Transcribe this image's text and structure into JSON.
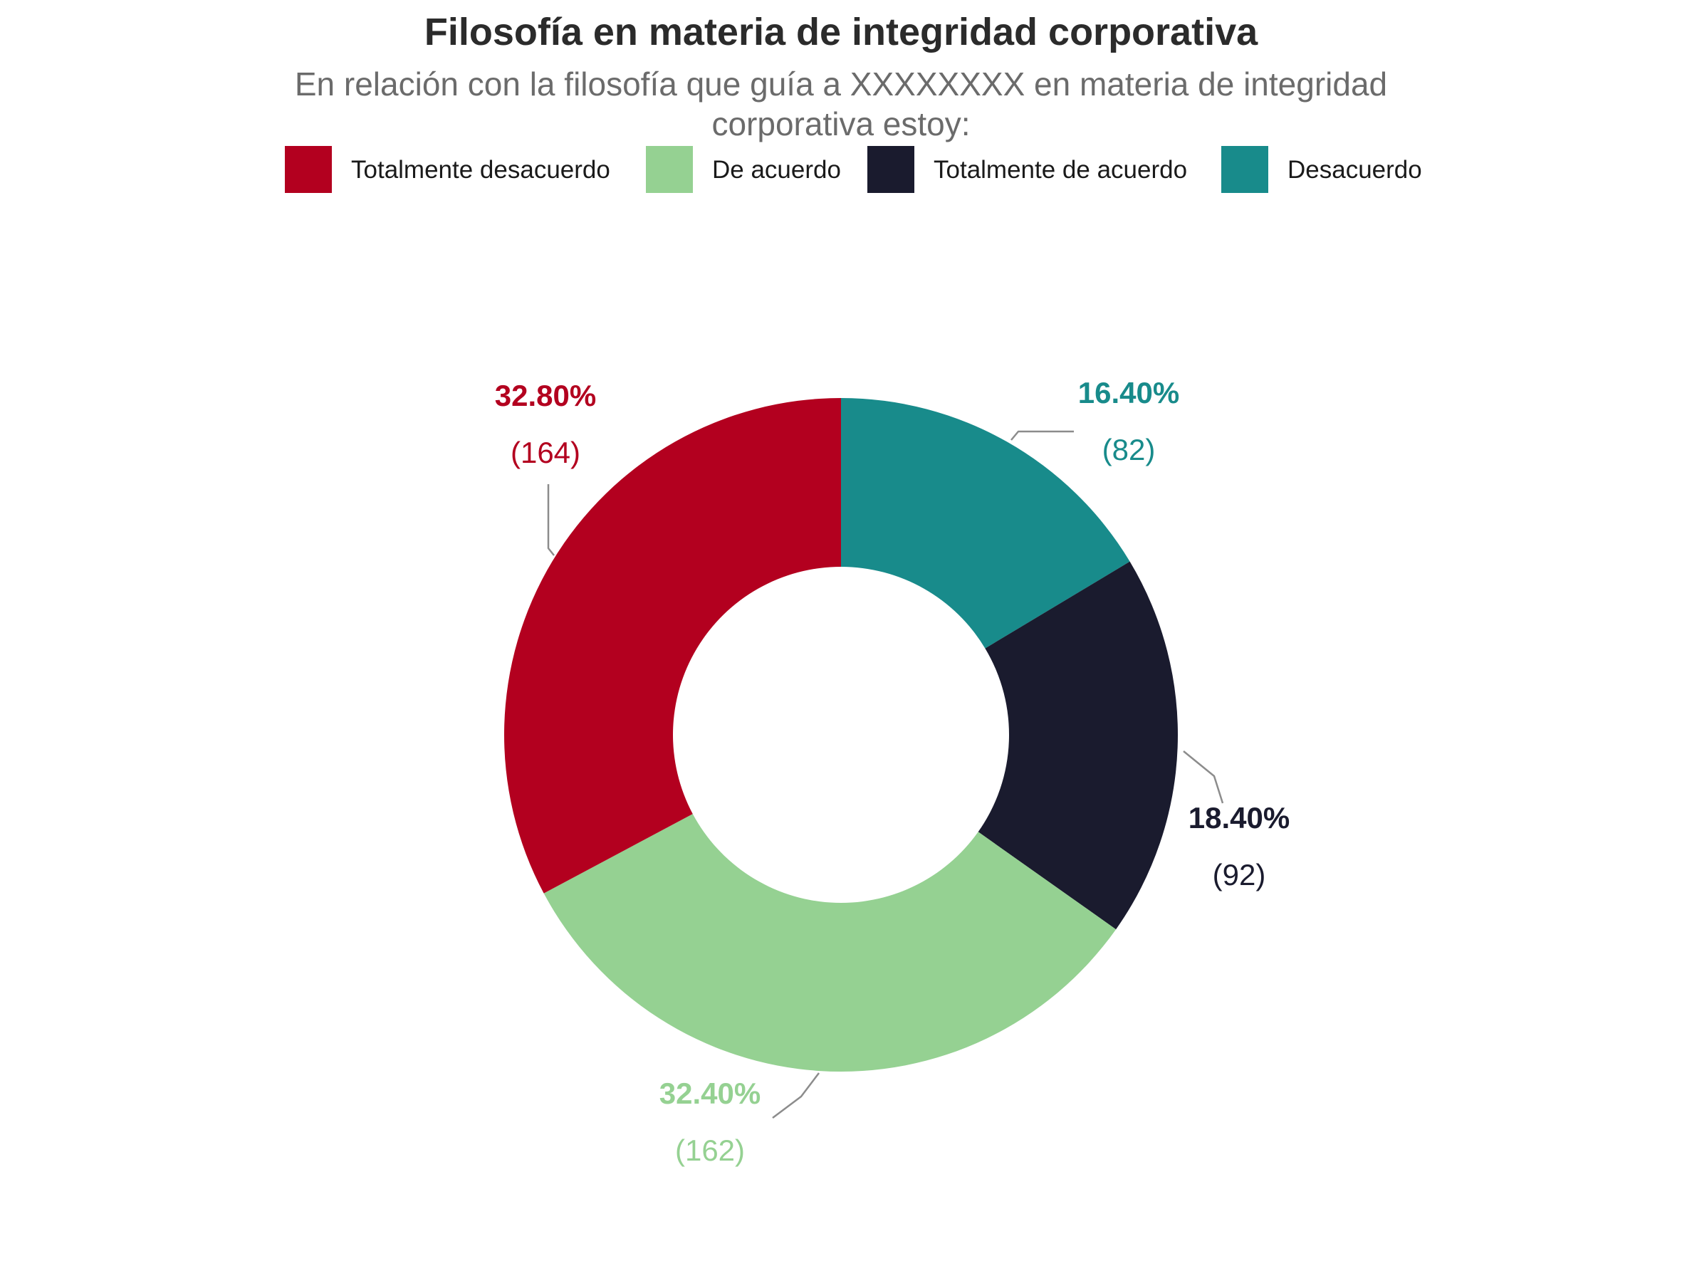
{
  "chart_data": {
    "type": "pie",
    "variant": "donut",
    "title": "Filosofía en materia de integridad corporativa",
    "subtitle": "En relación con la filosofía que guía a XXXXXXXX en materia de integridad corporativa estoy:",
    "legend_position": "top",
    "categories": [
      "Totalmente desacuerdo",
      "De acuerdo",
      "Totalmente de acuerdo",
      "Desacuerdo"
    ],
    "slices": [
      {
        "label": "Desacuerdo",
        "percent_label": "16.40%",
        "count_label": "(82)",
        "value": 82,
        "color": "#188b8b"
      },
      {
        "label": "Totalmente de acuerdo",
        "percent_label": "18.40%",
        "count_label": "(92)",
        "value": 92,
        "color": "#1a1b2e"
      },
      {
        "label": "De acuerdo",
        "percent_label": "32.40%",
        "count_label": "(162)",
        "value": 162,
        "color": "#95d192"
      },
      {
        "label": "Totalmente desacuerdo",
        "percent_label": "32.80%",
        "count_label": "(164)",
        "value": 164,
        "color": "#b3001f"
      }
    ],
    "legend": [
      {
        "label": "Totalmente desacuerdo",
        "color": "#b3001f"
      },
      {
        "label": "De acuerdo",
        "color": "#95d192"
      },
      {
        "label": "Totalmente de acuerdo",
        "color": "#1a1b2e"
      },
      {
        "label": "Desacuerdo",
        "color": "#188b8b"
      }
    ]
  }
}
